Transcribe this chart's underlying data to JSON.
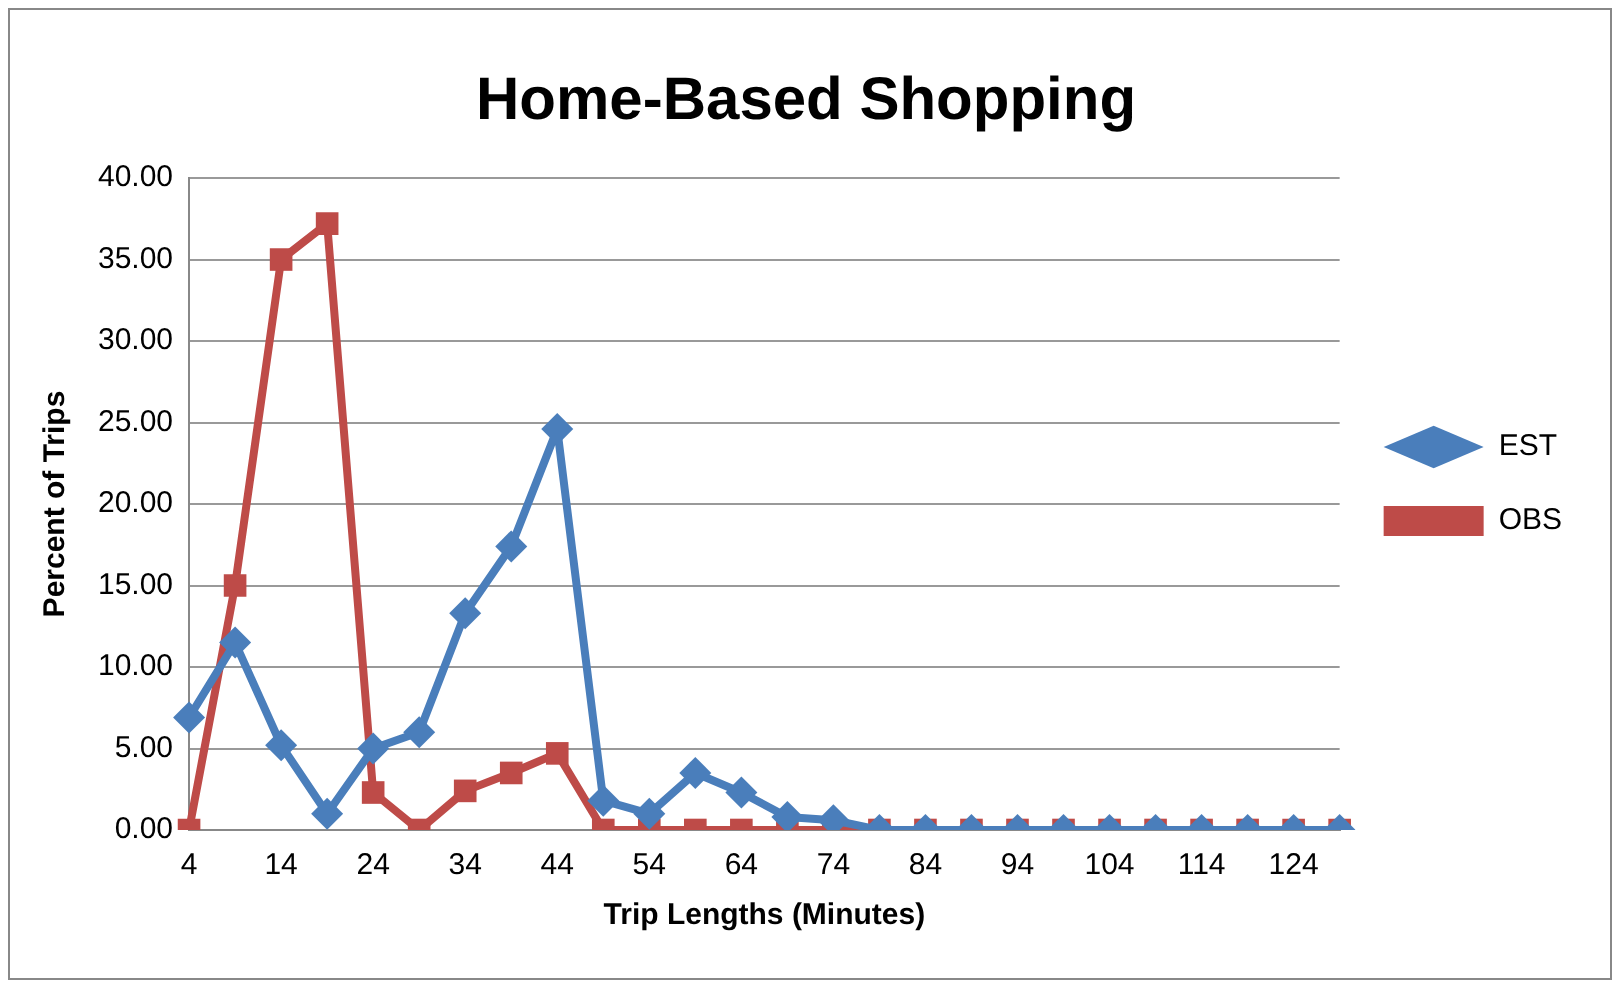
{
  "chart_data": {
    "type": "line",
    "title": "Home-Based Shopping",
    "xlabel": "Trip Lengths (Minutes)",
    "ylabel": "Percent of Trips",
    "categories": [
      "4",
      null,
      "14",
      null,
      "24",
      null,
      "34",
      null,
      "44",
      null,
      "54",
      null,
      "64",
      null,
      "74",
      null,
      "84",
      null,
      "94",
      null,
      "104",
      null,
      "114",
      null,
      "124",
      null
    ],
    "series": [
      {
        "name": "EST",
        "color": "#4a7ebb",
        "marker": "diamond",
        "values": [
          6.9,
          11.5,
          5.2,
          1.0,
          5.0,
          6.0,
          13.3,
          17.4,
          24.6,
          1.8,
          1.0,
          3.5,
          2.3,
          0.8,
          0.6,
          0,
          0,
          0,
          0,
          0,
          0,
          0,
          0,
          0,
          0,
          0
        ]
      },
      {
        "name": "OBS",
        "color": "#be4b48",
        "marker": "square",
        "values": [
          0,
          15.0,
          35.0,
          37.2,
          2.3,
          0,
          2.4,
          3.5,
          4.7,
          0,
          0,
          0,
          0,
          0,
          0,
          0,
          0,
          0,
          0,
          0,
          0,
          0,
          0,
          0,
          0,
          0
        ]
      }
    ],
    "ylim": [
      0,
      40
    ],
    "yticks": [
      {
        "value": 0,
        "label": "0.00"
      },
      {
        "value": 5,
        "label": "5.00"
      },
      {
        "value": 10,
        "label": "10.00"
      },
      {
        "value": 15,
        "label": "15.00"
      },
      {
        "value": 20,
        "label": "20.00"
      },
      {
        "value": 25,
        "label": "25.00"
      },
      {
        "value": 30,
        "label": "30.00"
      },
      {
        "value": 35,
        "label": "35.00"
      },
      {
        "value": 40,
        "label": "40.00"
      }
    ],
    "grid": "y",
    "legend": "right"
  }
}
